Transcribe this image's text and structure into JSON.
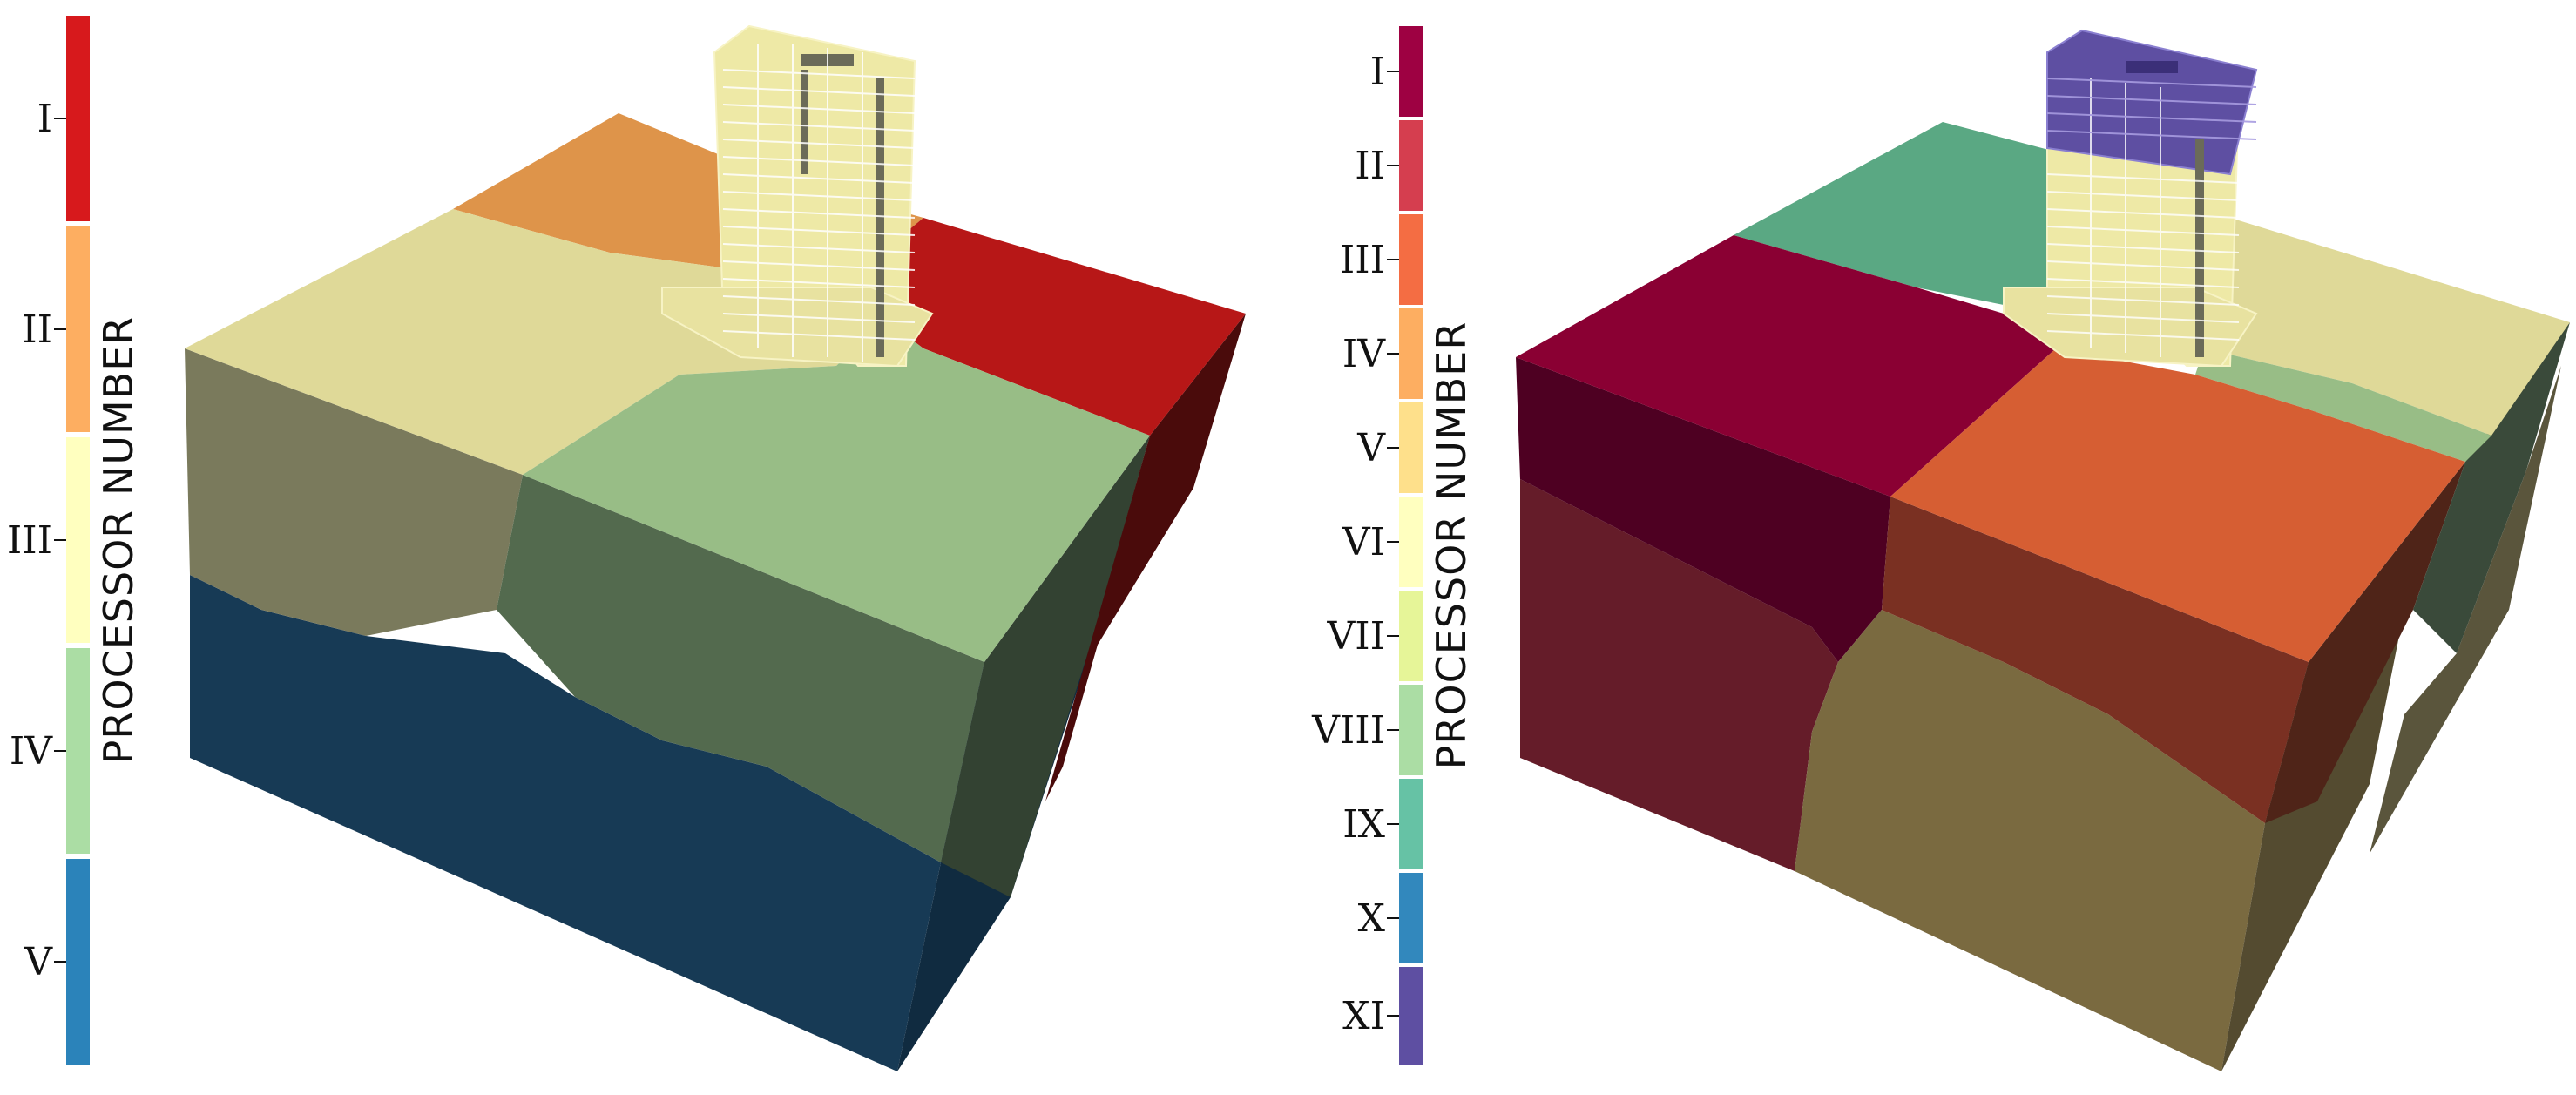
{
  "left_panel": {
    "colorbar": {
      "title": "PROCESSOR NUMBER",
      "ticks": [
        {
          "label": "I",
          "color": "#d7191c"
        },
        {
          "label": "II",
          "color": "#fdae61"
        },
        {
          "label": "III",
          "color": "#ffffbf"
        },
        {
          "label": "IV",
          "color": "#abdda4"
        },
        {
          "label": "V",
          "color": "#2b83ba"
        }
      ]
    },
    "render": {
      "description_icon": "cube-partition-5",
      "region_colors": {
        "red": "#b71717",
        "orange": "#de944a",
        "yellow": "#dfd998",
        "green": "#98bd86",
        "blue": "#173a55"
      }
    }
  },
  "right_panel": {
    "colorbar": {
      "title": "PROCESSOR NUMBER",
      "ticks": [
        {
          "label": "I",
          "color": "#9e0142"
        },
        {
          "label": "II",
          "color": "#d53e4f"
        },
        {
          "label": "III",
          "color": "#f46d43"
        },
        {
          "label": "IV",
          "color": "#fdae61"
        },
        {
          "label": "V",
          "color": "#fee08b"
        },
        {
          "label": "VI",
          "color": "#ffffbf"
        },
        {
          "label": "VII",
          "color": "#e6f598"
        },
        {
          "label": "VIII",
          "color": "#abdda4"
        },
        {
          "label": "IX",
          "color": "#66c2a5"
        },
        {
          "label": "X",
          "color": "#3288bd"
        },
        {
          "label": "XI",
          "color": "#5e4fa2"
        }
      ]
    },
    "render": {
      "description_icon": "cube-partition-11",
      "region_colors": {
        "crimson": "#8a0033",
        "teal": "#5aa883",
        "yellow": "#dfd998",
        "orange": "#d65e33",
        "green": "#98bd86",
        "purple": "#5e4fa2",
        "olive": "#7a6a40"
      }
    }
  }
}
